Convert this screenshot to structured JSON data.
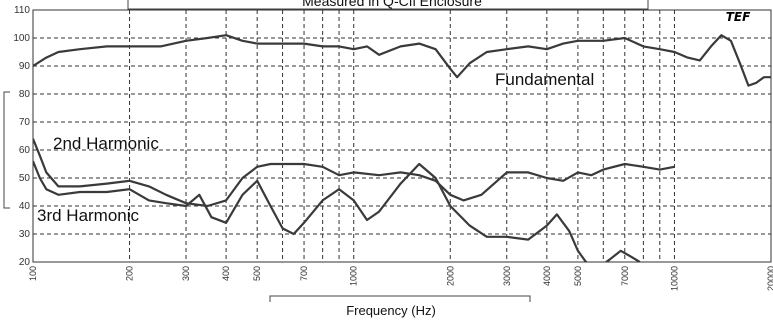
{
  "chart_data": {
    "type": "line",
    "title": "Measured in Q-Cfl Enclosure",
    "xlabel": "Frequency (Hz)",
    "ylabel": "",
    "xscale": "log",
    "xlim": [
      100,
      20000
    ],
    "ylim": [
      20,
      110
    ],
    "y_ticks": [
      20,
      30,
      40,
      50,
      60,
      70,
      80,
      90,
      100,
      110
    ],
    "x_tick_labels": [
      "100",
      "200",
      "300",
      "400",
      "500",
      "700",
      "1000",
      "2000",
      "3000",
      "4000",
      "5000",
      "7000",
      "10000",
      "20000"
    ],
    "x_ticks": [
      100,
      200,
      300,
      400,
      500,
      700,
      1000,
      2000,
      3000,
      4000,
      5000,
      7000,
      10000,
      20000
    ],
    "grid": true,
    "logo": "TEF",
    "annotations": [
      {
        "text": "Fundamental",
        "series": 0
      },
      {
        "text": "2nd Harmonic",
        "series": 1
      },
      {
        "text": "3rd Harmonic",
        "series": 2
      }
    ],
    "series": [
      {
        "name": "Fundamental",
        "x": [
          100,
          110,
          120,
          140,
          170,
          200,
          250,
          300,
          350,
          400,
          450,
          500,
          600,
          700,
          800,
          900,
          1000,
          1100,
          1200,
          1400,
          1600,
          1800,
          2000,
          2100,
          2300,
          2600,
          3000,
          3500,
          4000,
          4500,
          5000,
          6000,
          7000,
          8000,
          9000,
          10000,
          11000,
          12000,
          13000,
          14000,
          15000,
          16000,
          17000,
          18000,
          19000,
          20000
        ],
        "values": [
          90,
          93,
          95,
          96,
          97,
          97,
          97,
          99,
          100,
          101,
          99,
          98,
          98,
          98,
          97,
          97,
          96,
          97,
          94,
          97,
          98,
          96,
          89,
          86,
          91,
          95,
          96,
          97,
          96,
          98,
          99,
          99,
          100,
          97,
          96,
          95,
          93,
          92,
          97,
          101,
          99,
          91,
          83,
          84,
          86,
          86
        ]
      },
      {
        "name": "2nd Harmonic",
        "x": [
          100,
          105,
          110,
          120,
          140,
          170,
          200,
          230,
          260,
          300,
          350,
          400,
          450,
          500,
          550,
          600,
          700,
          800,
          900,
          1000,
          1200,
          1400,
          1600,
          1800,
          2000,
          2200,
          2500,
          3000,
          3500,
          4000,
          4500,
          5000,
          5500,
          6000,
          7000,
          8000,
          9000,
          10000
        ],
        "values": [
          64,
          58,
          52,
          47,
          47,
          48,
          49,
          47,
          44,
          41,
          40,
          42,
          50,
          54,
          55,
          55,
          55,
          54,
          51,
          52,
          51,
          52,
          51,
          49,
          44,
          42,
          44,
          52,
          52,
          50,
          49,
          52,
          51,
          53,
          55,
          54,
          53,
          54
        ]
      },
      {
        "name": "3rd Harmonic",
        "x": [
          100,
          105,
          110,
          120,
          140,
          170,
          200,
          230,
          260,
          300,
          330,
          360,
          400,
          450,
          500,
          550,
          600,
          650,
          700,
          800,
          900,
          1000,
          1100,
          1200,
          1400,
          1600,
          1800,
          2000,
          2300,
          2600,
          3000,
          3500,
          4000,
          4300,
          4700,
          5000,
          5300,
          5800,
          6300,
          6800,
          7300,
          7800
        ],
        "values": [
          56,
          50,
          46,
          44,
          45,
          45,
          46,
          42,
          41,
          40,
          44,
          36,
          34,
          44,
          49,
          40,
          32,
          30,
          34,
          42,
          46,
          42,
          35,
          38,
          48,
          55,
          50,
          40,
          33,
          29,
          29,
          28,
          33,
          37,
          31,
          24,
          20,
          18,
          21,
          24,
          22,
          20
        ]
      }
    ]
  }
}
